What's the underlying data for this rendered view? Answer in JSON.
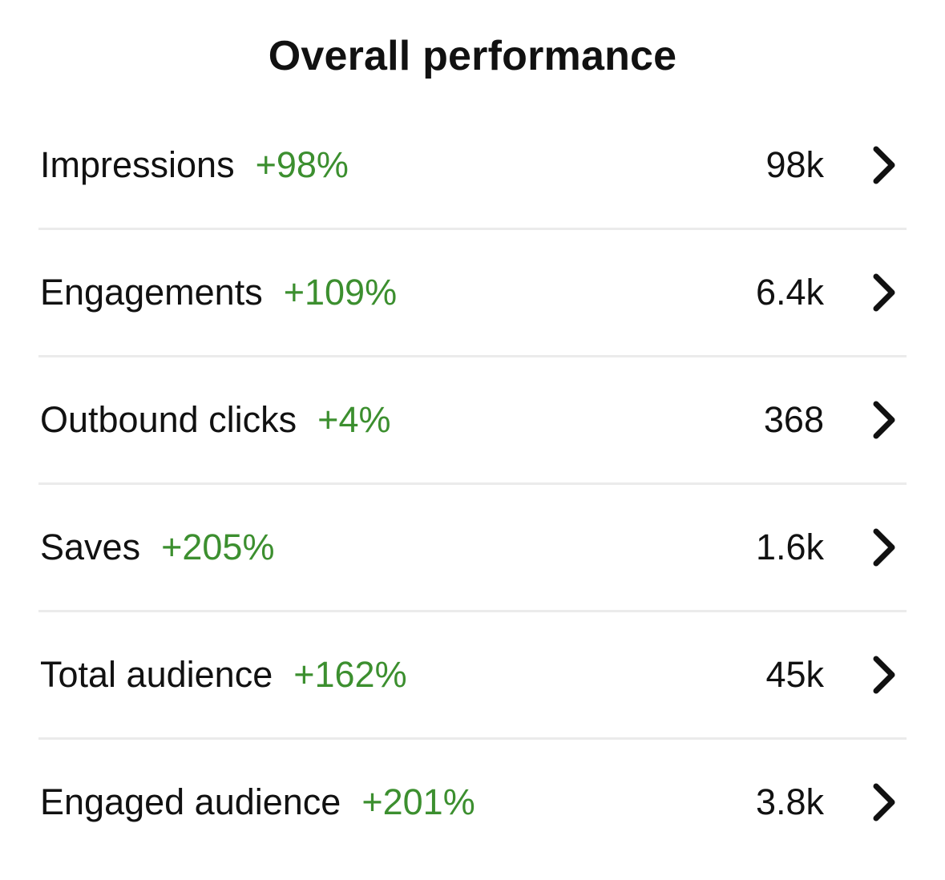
{
  "title": "Overall performance",
  "colors": {
    "positive_change": "#3c8f2f",
    "text": "#111111",
    "divider": "#ebebeb"
  },
  "metrics": [
    {
      "label": "Impressions",
      "change": "+98%",
      "value": "98k",
      "icon": "chevron-right-icon"
    },
    {
      "label": "Engagements",
      "change": "+109%",
      "value": "6.4k",
      "icon": "chevron-right-icon"
    },
    {
      "label": "Outbound clicks",
      "change": "+4%",
      "value": "368",
      "icon": "chevron-right-icon"
    },
    {
      "label": "Saves",
      "change": "+205%",
      "value": "1.6k",
      "icon": "chevron-right-icon"
    },
    {
      "label": "Total audience",
      "change": "+162%",
      "value": "45k",
      "icon": "chevron-right-icon"
    },
    {
      "label": "Engaged audience",
      "change": "+201%",
      "value": "3.8k",
      "icon": "chevron-right-icon"
    }
  ]
}
